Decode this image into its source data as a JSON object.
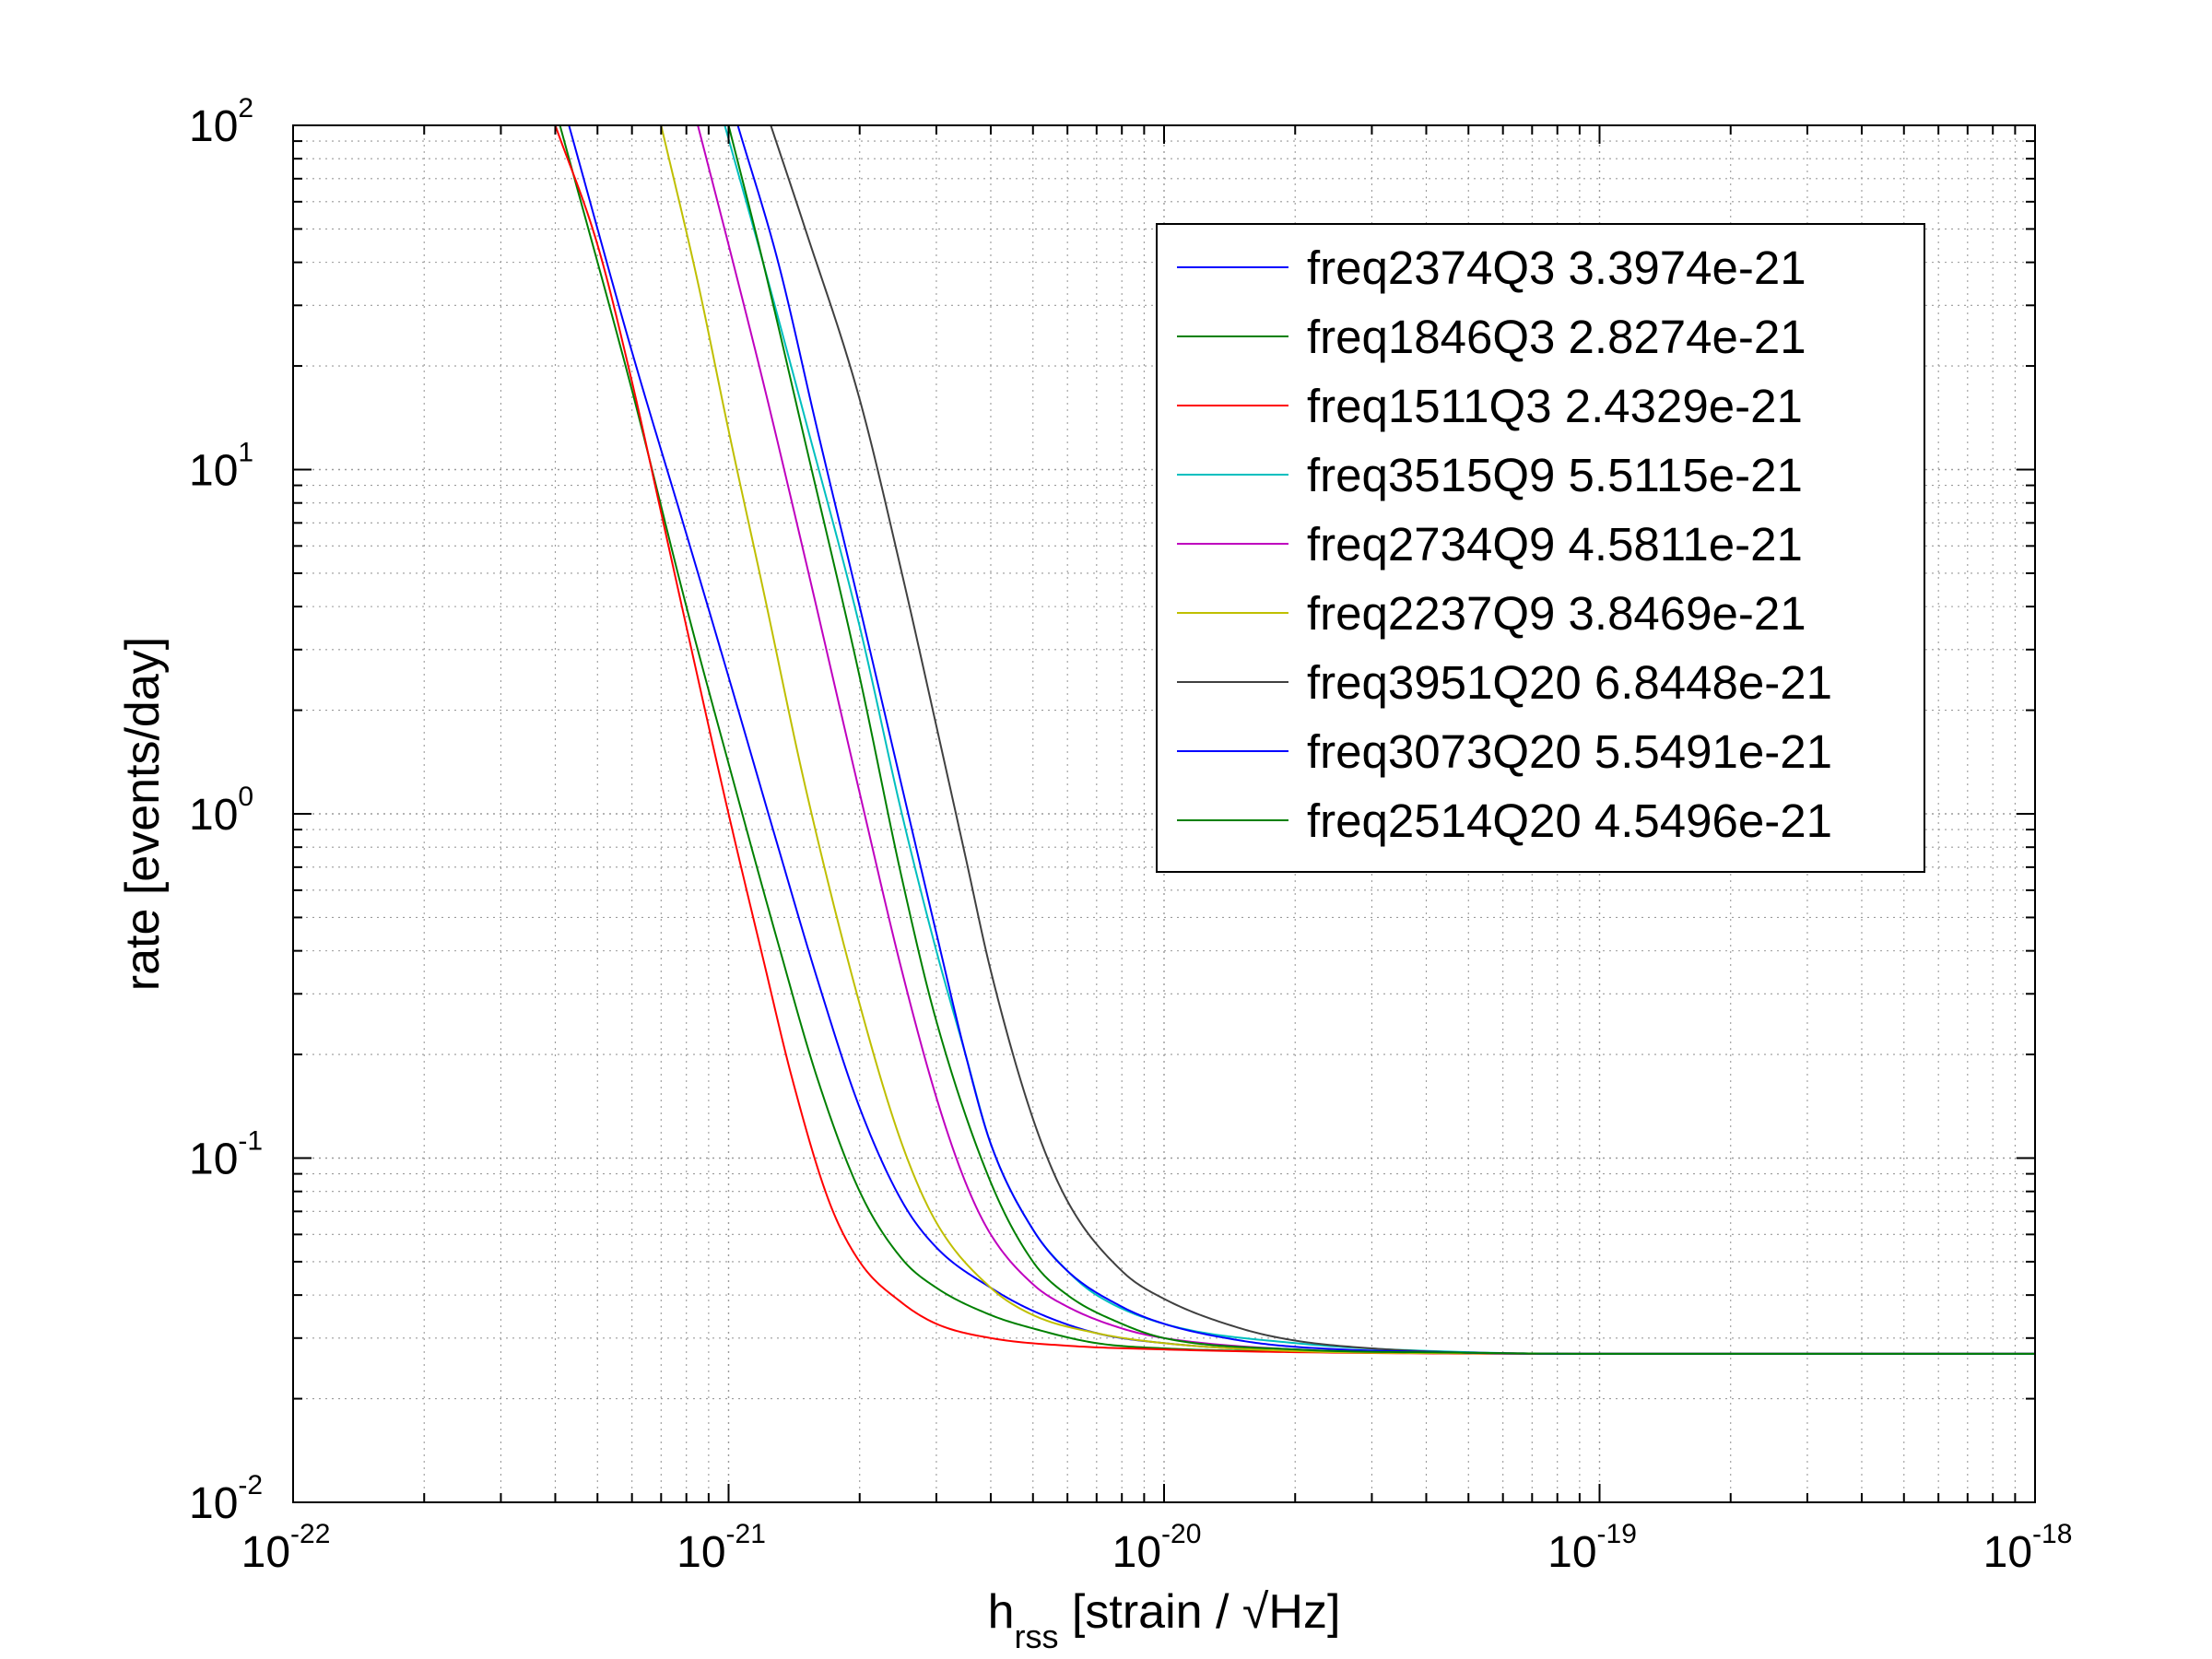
{
  "chart_data": {
    "type": "line",
    "title": "",
    "xlabel": "h",
    "xlabel_sub": "rss",
    "xlabel_rest": " [strain / √Hz]",
    "ylabel": "rate [events/day]",
    "xscale": "log",
    "yscale": "log",
    "xlim": [
      1e-22,
      1e-18
    ],
    "ylim": [
      0.01,
      100
    ],
    "grid": true,
    "legend_position": "top-right",
    "x_ticks": [
      {
        "base": "10",
        "exp": "-22"
      },
      {
        "base": "10",
        "exp": "-21"
      },
      {
        "base": "10",
        "exp": "-20"
      },
      {
        "base": "10",
        "exp": "-19"
      },
      {
        "base": "10",
        "exp": "-18"
      }
    ],
    "y_ticks": [
      {
        "base": "10",
        "exp": "-2"
      },
      {
        "base": "10",
        "exp": "-1"
      },
      {
        "base": "10",
        "exp": "0"
      },
      {
        "base": "10",
        "exp": "1"
      },
      {
        "base": "10",
        "exp": "2"
      }
    ],
    "baseline_rate": 0.027,
    "series": [
      {
        "name": "freq2374Q3 3.3974e-21",
        "color": "#0000ff",
        "x": [
          4.3e-22,
          6e-22,
          8e-22,
          1e-21,
          1.3e-21,
          1.6e-21,
          2e-21,
          2.5e-21,
          3e-21,
          4e-21,
          5e-21,
          7e-21,
          1e-20,
          2e-20,
          5e-20,
          1e-19,
          1e-18
        ],
        "y": [
          100,
          22,
          6.5,
          2.5,
          0.8,
          0.33,
          0.14,
          0.075,
          0.055,
          0.042,
          0.036,
          0.031,
          0.029,
          0.0275,
          0.0271,
          0.027,
          0.027
        ]
      },
      {
        "name": "freq1846Q3 2.8274e-21",
        "color": "#008000",
        "x": [
          4.1e-22,
          6e-22,
          8e-22,
          1e-21,
          1.3e-21,
          1.6e-21,
          2e-21,
          2.5e-21,
          3e-21,
          4e-21,
          5e-21,
          7e-21,
          1e-20,
          2e-20,
          5e-20,
          1e-19,
          1e-18
        ],
        "y": [
          100,
          17,
          4.0,
          1.4,
          0.42,
          0.17,
          0.08,
          0.051,
          0.042,
          0.035,
          0.032,
          0.029,
          0.028,
          0.0274,
          0.0271,
          0.027,
          0.027
        ]
      },
      {
        "name": "freq1511Q3 2.4329e-21",
        "color": "#ff0000",
        "x": [
          4e-22,
          5e-22,
          6e-22,
          7e-22,
          8e-22,
          1e-21,
          1.2e-21,
          1.4e-21,
          1.7e-21,
          2e-21,
          2.5e-21,
          3e-21,
          4e-21,
          6e-21,
          1e-20,
          2e-20,
          1e-19,
          1e-18
        ],
        "y": [
          100,
          45,
          18,
          7.5,
          3.5,
          1.0,
          0.38,
          0.17,
          0.075,
          0.05,
          0.038,
          0.033,
          0.03,
          0.0285,
          0.0278,
          0.0273,
          0.027,
          0.027
        ]
      },
      {
        "name": "freq3515Q9 5.5115e-21",
        "color": "#00bfbf",
        "x": [
          9.8e-22,
          1.2e-21,
          1.5e-21,
          2e-21,
          2.5e-21,
          3e-21,
          3.5e-21,
          4e-21,
          5e-21,
          6e-21,
          7e-21,
          1e-20,
          2e-20,
          5e-20,
          1e-19,
          1e-18
        ],
        "y": [
          100,
          40,
          14,
          3.5,
          1.0,
          0.4,
          0.2,
          0.11,
          0.062,
          0.047,
          0.04,
          0.033,
          0.029,
          0.0273,
          0.027,
          0.027
        ]
      },
      {
        "name": "freq2734Q9 4.5811e-21",
        "color": "#bf00bf",
        "x": [
          8.5e-22,
          1e-21,
          1.2e-21,
          1.5e-21,
          2e-21,
          2.5e-21,
          3e-21,
          3.5e-21,
          4e-21,
          5e-21,
          6e-21,
          8e-21,
          1e-20,
          2e-20,
          5e-20,
          1e-19,
          1e-18
        ],
        "y": [
          100,
          45,
          18,
          5.5,
          1.15,
          0.35,
          0.15,
          0.085,
          0.06,
          0.043,
          0.037,
          0.032,
          0.03,
          0.0278,
          0.0272,
          0.027,
          0.027
        ]
      },
      {
        "name": "freq2237Q9 3.8469e-21",
        "color": "#bfbf00",
        "x": [
          7e-22,
          8.5e-22,
          1e-21,
          1.2e-21,
          1.5e-21,
          2e-21,
          2.5e-21,
          3e-21,
          4e-21,
          5e-21,
          7e-21,
          1e-20,
          2e-20,
          5e-20,
          1e-19,
          1e-18
        ],
        "y": [
          100,
          35,
          13,
          4.5,
          1.2,
          0.28,
          0.11,
          0.065,
          0.042,
          0.035,
          0.031,
          0.029,
          0.0275,
          0.0271,
          0.027,
          0.027
        ]
      },
      {
        "name": "freq3951Q20 6.8448e-21",
        "color": "#404040",
        "x": [
          1.25e-21,
          1.5e-21,
          2e-21,
          2.5e-21,
          3e-21,
          3.5e-21,
          4e-21,
          5e-21,
          6e-21,
          8e-21,
          1e-20,
          1.5e-20,
          2e-20,
          3e-20,
          5e-20,
          1e-19,
          1e-18
        ],
        "y": [
          100,
          50,
          16,
          5.0,
          1.8,
          0.75,
          0.35,
          0.13,
          0.075,
          0.047,
          0.039,
          0.032,
          0.0295,
          0.028,
          0.0272,
          0.027,
          0.027
        ]
      },
      {
        "name": "freq3073Q20 5.5491e-21",
        "color": "#0000ff",
        "x": [
          1.05e-21,
          1.3e-21,
          1.6e-21,
          2e-21,
          2.5e-21,
          3e-21,
          3.5e-21,
          4e-21,
          5e-21,
          6e-21,
          8e-21,
          1e-20,
          1.5e-20,
          2e-20,
          5e-20,
          1e-19,
          1e-18
        ],
        "y": [
          100,
          40,
          13,
          4.0,
          1.2,
          0.45,
          0.2,
          0.11,
          0.062,
          0.047,
          0.037,
          0.033,
          0.0295,
          0.0283,
          0.0272,
          0.027,
          0.027
        ]
      },
      {
        "name": "freq2514Q20 4.5496e-21",
        "color": "#008000",
        "x": [
          1e-21,
          1.2e-21,
          1.5e-21,
          2e-21,
          2.5e-21,
          3e-21,
          4e-21,
          5e-21,
          6e-21,
          8e-21,
          1e-20,
          2e-20,
          5e-20,
          1e-19,
          1e-18
        ],
        "y": [
          100,
          40,
          12,
          2.5,
          0.65,
          0.25,
          0.085,
          0.05,
          0.04,
          0.033,
          0.03,
          0.0278,
          0.0272,
          0.027,
          0.027
        ]
      }
    ]
  }
}
